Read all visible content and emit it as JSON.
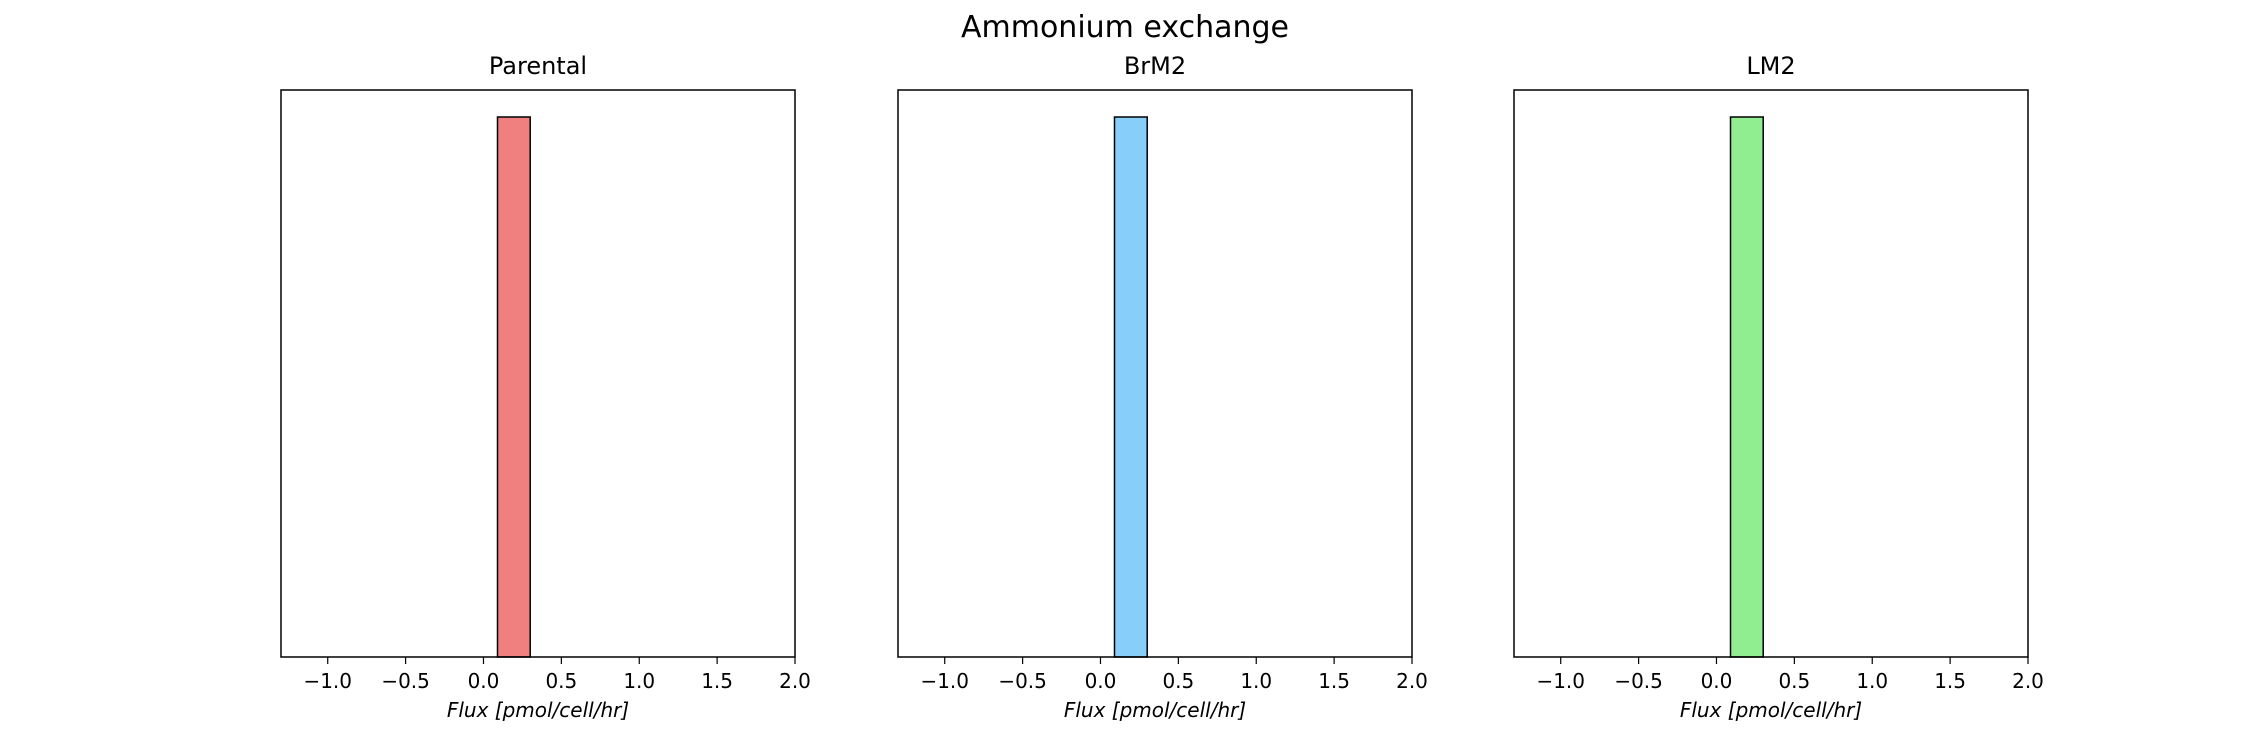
{
  "figure": {
    "title": "Ammonium exchange"
  },
  "chart_data": [
    {
      "type": "bar",
      "title": "Parental",
      "xlabel": "Flux [pmol/cell/hr]",
      "ylabel": "",
      "xlim": [
        -1.3,
        2.0
      ],
      "ylim": [
        0,
        1.05
      ],
      "xticks": [
        -1.0,
        -0.5,
        0.0,
        0.5,
        1.0,
        1.5,
        2.0
      ],
      "xtick_labels": [
        "−1.0",
        "−0.5",
        "0.0",
        "0.5",
        "1.0",
        "1.5",
        "2.0"
      ],
      "y_axis_visible": false,
      "grid": false,
      "bins": [
        {
          "x_start": 0.09,
          "x_end": 0.3,
          "value": 1.0
        }
      ],
      "color": "#f08080"
    },
    {
      "type": "bar",
      "title": "BrM2",
      "xlabel": "Flux [pmol/cell/hr]",
      "ylabel": "",
      "xlim": [
        -1.3,
        2.0
      ],
      "ylim": [
        0,
        1.05
      ],
      "xticks": [
        -1.0,
        -0.5,
        0.0,
        0.5,
        1.0,
        1.5,
        2.0
      ],
      "xtick_labels": [
        "−1.0",
        "−0.5",
        "0.0",
        "0.5",
        "1.0",
        "1.5",
        "2.0"
      ],
      "y_axis_visible": false,
      "grid": false,
      "bins": [
        {
          "x_start": 0.09,
          "x_end": 0.3,
          "value": 1.0
        }
      ],
      "color": "#87cefa"
    },
    {
      "type": "bar",
      "title": "LM2",
      "xlabel": "Flux [pmol/cell/hr]",
      "ylabel": "",
      "xlim": [
        -1.3,
        2.0
      ],
      "ylim": [
        0,
        1.05
      ],
      "xticks": [
        -1.0,
        -0.5,
        0.0,
        0.5,
        1.0,
        1.5,
        2.0
      ],
      "xtick_labels": [
        "−1.0",
        "−0.5",
        "0.0",
        "0.5",
        "1.0",
        "1.5",
        "2.0"
      ],
      "y_axis_visible": false,
      "grid": false,
      "bins": [
        {
          "x_start": 0.09,
          "x_end": 0.3,
          "value": 1.0
        }
      ],
      "color": "#90ee90"
    }
  ]
}
